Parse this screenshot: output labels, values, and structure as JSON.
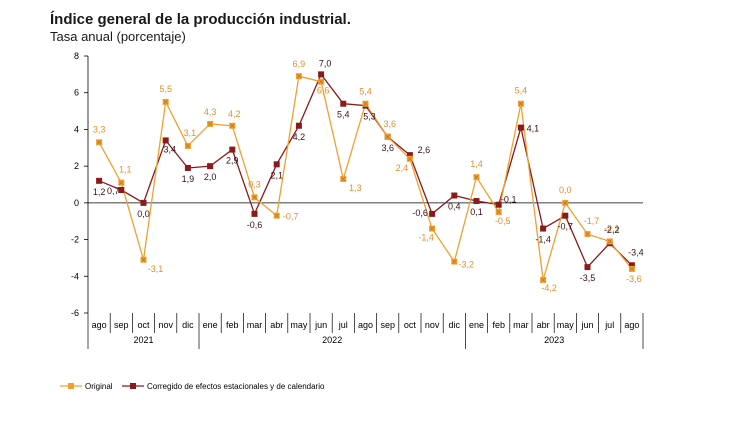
{
  "chart_data": {
    "type": "line",
    "title": "Índice general de la producción industrial.",
    "subtitle": "Tasa anual (porcentaje)",
    "months": [
      "ago",
      "sep",
      "oct",
      "nov",
      "dic",
      "ene",
      "feb",
      "mar",
      "abr",
      "may",
      "jun",
      "jul",
      "ago",
      "sep",
      "oct",
      "nov",
      "dic",
      "ene",
      "feb",
      "mar",
      "abr",
      "may",
      "jun",
      "jul",
      "ago"
    ],
    "years": [
      {
        "label": "2021",
        "start": 0,
        "end": 4
      },
      {
        "label": "2022",
        "start": 5,
        "end": 16
      },
      {
        "label": "2023",
        "start": 17,
        "end": 24
      }
    ],
    "ylim": [
      -6,
      8
    ],
    "yticks": [
      8,
      6,
      4,
      2,
      0,
      -2,
      -4,
      -6
    ],
    "grid": false,
    "legend_position": "bottom-left",
    "series": [
      {
        "name": "Original",
        "color": "#f0a030",
        "values": [
          3.3,
          1.1,
          -3.1,
          5.5,
          3.1,
          4.3,
          4.2,
          0.3,
          -0.7,
          6.9,
          6.6,
          1.3,
          5.4,
          3.6,
          2.4,
          -1.4,
          -3.2,
          1.4,
          -0.5,
          5.4,
          -4.2,
          0.0,
          -1.7,
          -2.1,
          -3.6
        ],
        "labels": [
          "3,3",
          "1,1",
          "-3,1",
          "5,5",
          "3,1",
          "4,3",
          "4,2",
          "0,3",
          "-0,7",
          "6,9",
          "6,6",
          "1,3",
          "5,4",
          "3,6",
          "2,4",
          "-1,4",
          "-3,2",
          "1,4",
          "-0,5",
          "5,4",
          "-4,2",
          "0,0",
          "-1,7",
          "-2,1",
          "-3,6"
        ]
      },
      {
        "name": "Corregido de efectos estacionales y de calendario",
        "color": "#8b1a1a",
        "values": [
          1.2,
          0.7,
          0.0,
          3.4,
          1.9,
          2.0,
          2.9,
          -0.6,
          2.1,
          4.2,
          7.0,
          5.4,
          5.3,
          3.6,
          2.6,
          -0.6,
          0.4,
          0.1,
          -0.1,
          4.1,
          -1.4,
          -0.7,
          -3.5,
          -2.2,
          -3.4
        ],
        "labels": [
          "1,2",
          "0,7",
          "0,0",
          "3,4",
          "1,9",
          "2,0",
          "2,9",
          "-0,6",
          "2,1",
          "4,2",
          "7,0",
          "5,4",
          "5,3",
          "3,6",
          "2,6",
          "-0,6",
          "0,4",
          "0,1",
          "-0,1",
          "4,1",
          "-1,4",
          "-0,7",
          "-3,5",
          "-2,2",
          "-3,4"
        ]
      }
    ]
  }
}
